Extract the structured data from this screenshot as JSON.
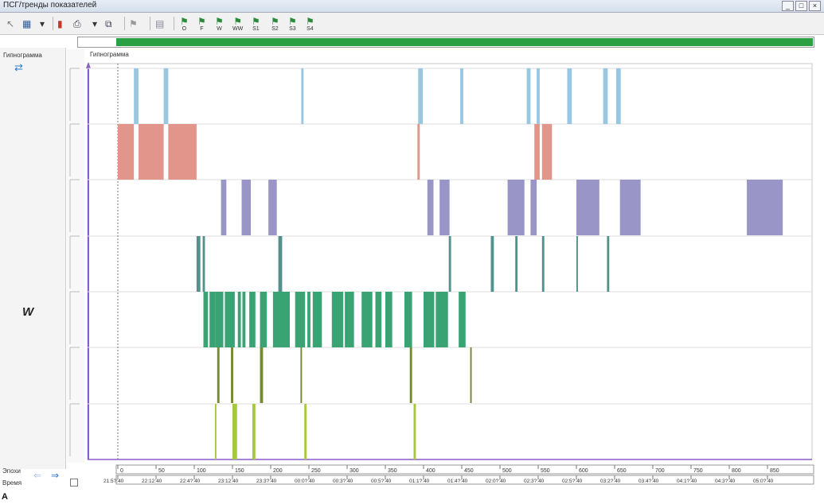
{
  "window": {
    "title": "ПСГ/тренды показателей",
    "controls": [
      "_",
      "□",
      "×"
    ]
  },
  "toolbar": {
    "buttons": [
      {
        "name": "select-tool-button",
        "icon": "cursor-icon",
        "glyph": "↖",
        "label": ""
      },
      {
        "name": "chart-settings-button",
        "icon": "chart-icon",
        "glyph": "▦",
        "label": ""
      },
      {
        "name": "dropdown-arrow-button",
        "icon": "chevron-down-icon",
        "glyph": "▾",
        "label": ""
      },
      {
        "name": "bar-chart-button",
        "icon": "bar-chart-icon",
        "glyph": "▮",
        "label": ""
      },
      {
        "name": "print-button",
        "icon": "printer-icon",
        "glyph": "⎙",
        "label": ""
      },
      {
        "name": "print-dropdown-button",
        "icon": "chevron-down-icon",
        "glyph": "▾",
        "label": ""
      },
      {
        "name": "window-button",
        "icon": "window-icon",
        "glyph": "⧉",
        "label": ""
      },
      {
        "name": "flag-tool-button",
        "icon": "flag-icon",
        "glyph": "⚑",
        "label": ""
      },
      {
        "name": "grid-button",
        "icon": "grid-icon",
        "glyph": "▤",
        "label": ""
      },
      {
        "name": "stage-o-button",
        "icon": "stage-flag-icon",
        "glyph": "⚑",
        "label": "O"
      },
      {
        "name": "stage-f-button",
        "icon": "stage-flag-icon",
        "glyph": "⚑",
        "label": "F"
      },
      {
        "name": "stage-w-button",
        "icon": "stage-flag-icon",
        "glyph": "⚑",
        "label": "W"
      },
      {
        "name": "stage-ww-button",
        "icon": "stage-flag-icon",
        "glyph": "⚑",
        "label": "WW"
      },
      {
        "name": "stage-s1-button",
        "icon": "stage-flag-icon",
        "glyph": "⚑",
        "label": "S1"
      },
      {
        "name": "stage-s2-button",
        "icon": "stage-flag-icon",
        "glyph": "⚑",
        "label": "S2"
      },
      {
        "name": "stage-s3-button",
        "icon": "stage-flag-icon",
        "glyph": "⚑",
        "label": "S3"
      },
      {
        "name": "stage-s4-button",
        "icon": "stage-flag-icon",
        "glyph": "⚑",
        "label": "S4"
      }
    ]
  },
  "left_panel": {
    "title": "Гипнограмма",
    "nav_arrows": "⇄",
    "stage_label": "W"
  },
  "graph": {
    "title": "Гипнограмма",
    "epoch_ticks": [
      "0",
      "50",
      "100",
      "150",
      "200",
      "250",
      "300",
      "350",
      "400",
      "450",
      "500",
      "550",
      "600",
      "650",
      "700",
      "750",
      "800",
      "850"
    ],
    "time_ticks": [
      "21:5?:40",
      "22:12:40",
      "22:4?:40",
      "23:12:40",
      "23:3?:40",
      "00:0?:40",
      "00:3?:40",
      "00:5?:40",
      "01:1?:40",
      "01:4?:40",
      "02:0?:40",
      "02:3?:40",
      "02:5?:40",
      "03:2?:40",
      "03:4?:40",
      "04:1?:40",
      "04:3?:40",
      "05:0?:40"
    ],
    "bottom_labels": {
      "epochs": "Эпохи",
      "time": "Время"
    }
  },
  "hypnogram": {
    "epoch_range": [
      0,
      880
    ],
    "rows": [
      {
        "color": "#98c7e2",
        "segments": [
          [
            21,
            27
          ],
          [
            60,
            66
          ],
          [
            240,
            243
          ],
          [
            393,
            399
          ],
          [
            448,
            452
          ],
          [
            535,
            540
          ],
          [
            548,
            552
          ],
          [
            588,
            594
          ],
          [
            635,
            641
          ],
          [
            652,
            658
          ]
        ]
      },
      {
        "color": "#e1958b",
        "segments": [
          [
            0,
            21
          ],
          [
            27,
            60
          ],
          [
            66,
            103
          ],
          [
            392,
            395
          ],
          [
            545,
            552
          ],
          [
            555,
            568
          ]
        ]
      },
      {
        "color": "#9995c6",
        "segments": [
          [
            135,
            142
          ],
          [
            162,
            174
          ],
          [
            197,
            208
          ],
          [
            405,
            413
          ],
          [
            421,
            434
          ],
          [
            510,
            532
          ],
          [
            540,
            548
          ],
          [
            600,
            630
          ],
          [
            657,
            684
          ],
          [
            823,
            870
          ]
        ]
      },
      {
        "color": "#55918c",
        "segments": [
          [
            103,
            108
          ],
          [
            111,
            114
          ],
          [
            210,
            215
          ],
          [
            433,
            436
          ],
          [
            488,
            492
          ],
          [
            520,
            523
          ],
          [
            555,
            558
          ],
          [
            600,
            602
          ],
          [
            640,
            643
          ]
        ]
      },
      {
        "color": "#3aa373",
        "segments": [
          [
            112,
            118
          ],
          [
            120,
            128
          ],
          [
            128,
            138
          ],
          [
            140,
            153
          ],
          [
            157,
            161
          ],
          [
            163,
            167
          ],
          [
            172,
            180
          ],
          [
            186,
            195
          ],
          [
            203,
            225
          ],
          [
            232,
            245
          ],
          [
            248,
            252
          ],
          [
            255,
            267
          ],
          [
            280,
            295
          ],
          [
            297,
            309
          ],
          [
            319,
            333
          ],
          [
            337,
            345
          ],
          [
            350,
            359
          ],
          [
            375,
            385
          ],
          [
            400,
            414
          ],
          [
            416,
            432
          ],
          [
            446,
            455
          ]
        ]
      },
      {
        "color": "#758a2d",
        "segments": [
          [
            130,
            133
          ],
          [
            148,
            151
          ],
          [
            186,
            190
          ],
          [
            239,
            241
          ],
          [
            382,
            385
          ],
          [
            461,
            463
          ]
        ]
      },
      {
        "color": "#a4c93e",
        "segments": [
          [
            127,
            129
          ],
          [
            150,
            156
          ],
          [
            176,
            180
          ],
          [
            244,
            247
          ],
          [
            387,
            390
          ]
        ]
      }
    ]
  }
}
